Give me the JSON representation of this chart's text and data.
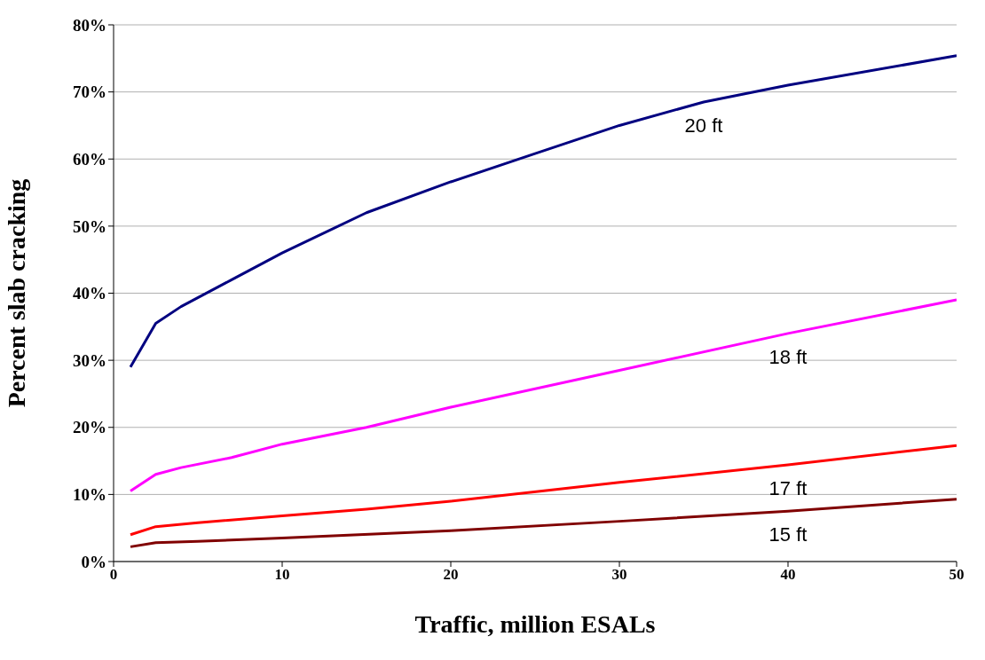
{
  "chart_data": {
    "type": "line",
    "xlabel": "Traffic, million ESALs",
    "ylabel": "Percent slab cracking",
    "xlim": [
      0,
      50
    ],
    "xticks": [
      0,
      10,
      20,
      30,
      40,
      50
    ],
    "ylim": [
      0,
      80
    ],
    "yticks": [
      {
        "value": 0,
        "label": "0%"
      },
      {
        "value": 10,
        "label": "10%"
      },
      {
        "value": 20,
        "label": "20%"
      },
      {
        "value": 30,
        "label": "30%"
      },
      {
        "value": 40,
        "label": "40%"
      },
      {
        "value": 50,
        "label": "50%"
      },
      {
        "value": 60,
        "label": "60%"
      },
      {
        "value": 70,
        "label": "70%"
      },
      {
        "value": 80,
        "label": "80%"
      }
    ],
    "grid": "y",
    "legend": false,
    "marker": "none",
    "line_style": "solid",
    "series": [
      {
        "name": "20 ft",
        "color": "#000080",
        "x": [
          1,
          2.5,
          4,
          7,
          10,
          15,
          20,
          25,
          30,
          35,
          40,
          50
        ],
        "values": [
          29,
          35.5,
          38,
          42,
          46,
          52,
          56.6,
          60.8,
          65,
          68.5,
          71,
          75.4
        ]
      },
      {
        "name": "18 ft",
        "color": "#ff00ff",
        "x": [
          1,
          2.5,
          4,
          7,
          10,
          15,
          20,
          30,
          40,
          50
        ],
        "values": [
          10.5,
          13,
          14,
          15.5,
          17.5,
          20,
          23,
          28.5,
          34,
          39
        ]
      },
      {
        "name": "17 ft",
        "color": "#ff0000",
        "x": [
          1,
          2.5,
          5,
          10,
          15,
          20,
          30,
          40,
          50
        ],
        "values": [
          4,
          5.2,
          5.8,
          6.8,
          7.8,
          9,
          11.8,
          14.4,
          17.3
        ]
      },
      {
        "name": "15 ft",
        "color": "#800000",
        "x": [
          1,
          2.5,
          5,
          10,
          20,
          30,
          40,
          50
        ],
        "values": [
          2.2,
          2.8,
          3,
          3.5,
          4.6,
          6,
          7.5,
          9.3
        ]
      }
    ]
  }
}
